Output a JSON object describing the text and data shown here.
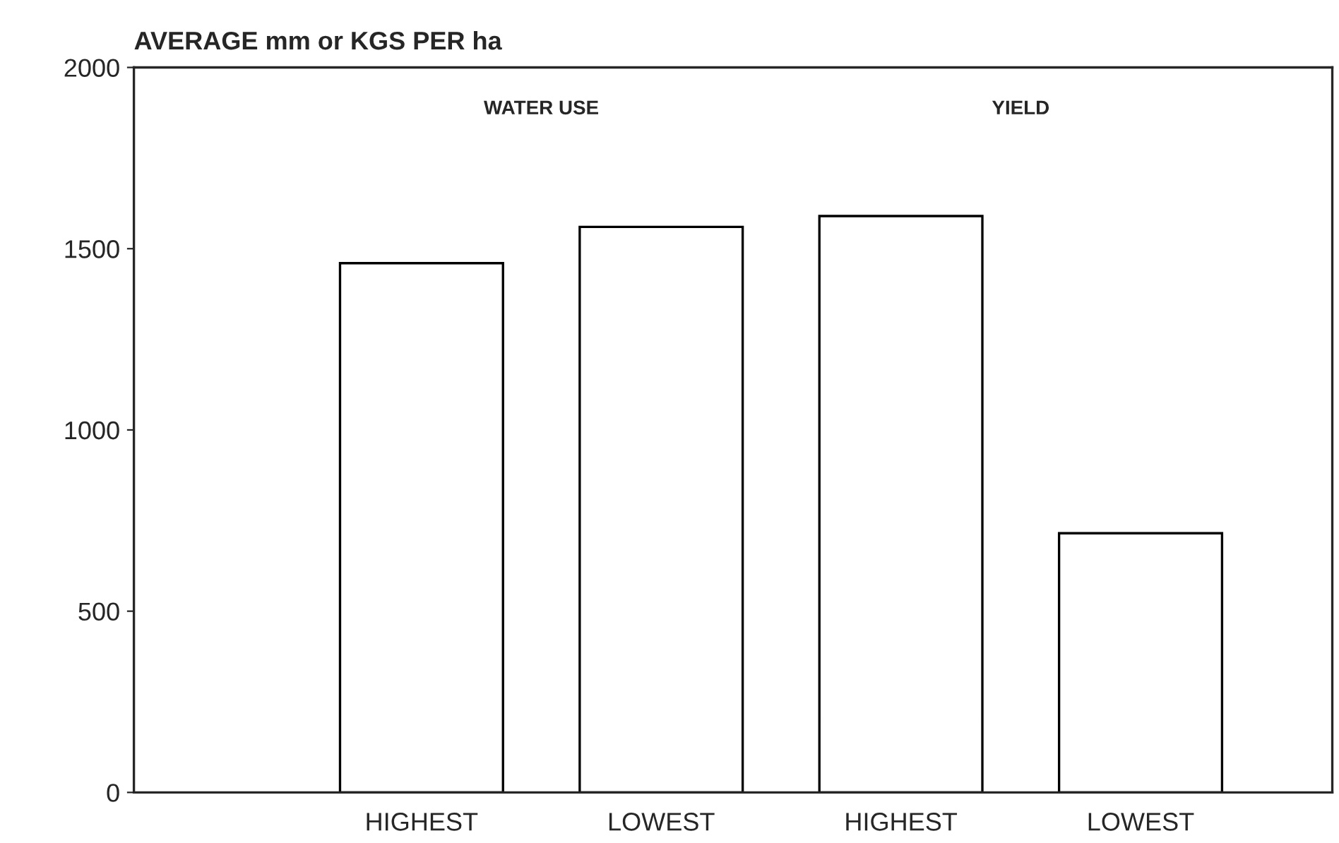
{
  "chart_data": {
    "type": "bar",
    "ylabel": "AVERAGE mm or KGS PER ha",
    "categories": [
      "HIGHEST",
      "LOWEST",
      "HIGHEST",
      "LOWEST"
    ],
    "values": [
      1460,
      1560,
      1590,
      715
    ],
    "color": "#ffffff",
    "ylim": [
      0,
      2000
    ],
    "yticks": [
      0,
      500,
      1000,
      1500,
      2000
    ],
    "annotations": [
      "WATER USE",
      "YIELD"
    ],
    "grid": false
  }
}
